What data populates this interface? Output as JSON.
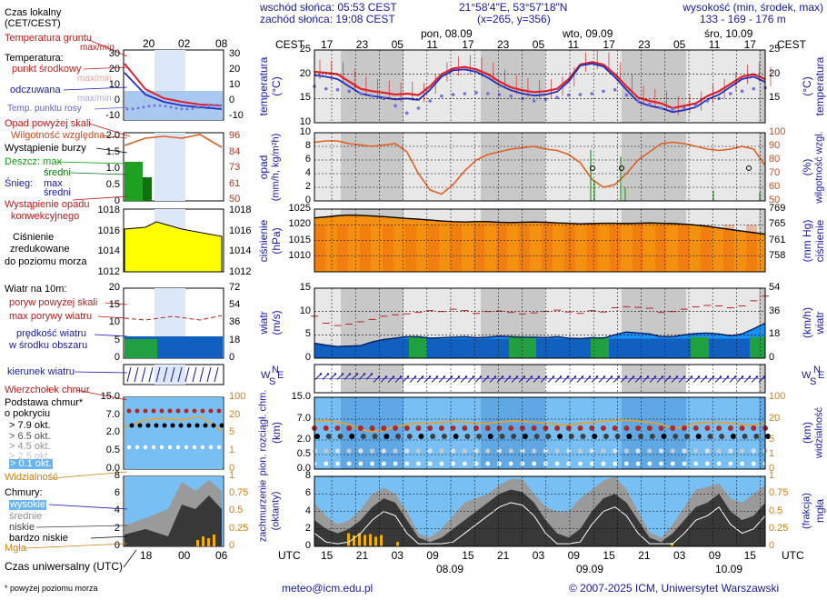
{
  "header": {
    "sunrise": "wschód słońca: 05:53 CEST",
    "sunset": "zachód słońca: 19:08 CEST",
    "coords": "21°58'4\"E, 53°57'18\"N",
    "grid": "(x=265, y=356)",
    "height_label": "wysokość (min, środek, max)",
    "height_values": "133 - 169 - 176 m",
    "day1": "pon, 08.09",
    "day2": "wto, 09.09",
    "day3": "śro, 10.09",
    "cest": "CEST",
    "utc": "UTC",
    "local_times": [
      "17",
      "23",
      "05",
      "11",
      "17",
      "23",
      "05",
      "11",
      "17",
      "23",
      "05",
      "11",
      "17"
    ],
    "utc_times": [
      "15",
      "21",
      "03",
      "09",
      "15",
      "21",
      "03",
      "09",
      "15",
      "21",
      "03",
      "09",
      "15"
    ],
    "bottom_dates": [
      "08.09",
      "09.09",
      "10.09"
    ]
  },
  "legend": {
    "local_time": "Czas lokalny",
    "local_time2": "(CET/CEST)",
    "local_ticks": [
      "20",
      "02",
      "08"
    ],
    "utc_ticks": [
      "18",
      "00",
      "06"
    ],
    "soil_temp": "Temperatura gruntu",
    "soil_temp_sub": "max/min",
    "temperature": "Temperatura:",
    "mid_point": "punkt środkowy",
    "max_min": "max/min",
    "feels": "odczuwana",
    "max_min2": "max/min",
    "dew": "Temp. punktu rosy",
    "precip_above": "Opad powyżej skali",
    "humidity": "Wilgotność względna",
    "storm": "Wystąpienie burzy",
    "rain": "Deszcz: max",
    "rain_mean": "średni",
    "snow": "Śnieg:",
    "snow_max": "max",
    "snow_mean": "średni",
    "conv": "Wystąpienie opadu",
    "conv2": "konwekcyjnego",
    "pressure1": "Ciśnienie",
    "pressure2": "zredukowane",
    "pressure3": "do poziomu morza",
    "wind10": "Wiatr na 10m:",
    "gust_above": "poryw powyżej skali",
    "gust_max": "max porywy wiatru",
    "wind_speed1": "prędkość wiatru",
    "wind_speed2": "w środku obszaru",
    "wind_dir": "kierunek wiatru",
    "cloud_top": "Wierzchołek chmur",
    "cloud_base1": "Podstawa chmur*",
    "cloud_base2": "o pokryciu",
    "okt1": "> 7.9 okt.",
    "okt2": "> 6.5 okt.",
    "okt3": "> 4.5 okt.",
    "okt4": "> 2.5 okt.",
    "okt5": "> 0.1 okt.",
    "visibility": "Widzialność",
    "clouds": "Chmury:",
    "cl_high": "wysokie",
    "cl_mid": "średnie",
    "cl_low": "niskie",
    "cl_vlow": "bardzo niskie",
    "fog": "Mgła",
    "utc_label": "Czas uniwersalny (UTC)",
    "footnote": "* powyżej poziomu morza"
  },
  "axes": {
    "temperature": "temperatura",
    "temperature_unit": "(°C)",
    "precip": "opad",
    "precip_unit": "(mm/h, kg/m²h)",
    "humidity": "wilgotność wzgl.",
    "humidity_unit": "(%)",
    "pressure": "ciśnienie",
    "pressure_unit": "(hPa)",
    "pressure_unit2": "(mm Hg)",
    "wind": "wiatr",
    "wind_unit": "(m/s)",
    "wind_unit2": "(km/h)",
    "cloud_base": "pion. rozciągł. chm.",
    "cloud_base_unit": "(km)",
    "visib": "widzialność",
    "visib_unit": "(km)",
    "cloud_cover": "zachmurzenie",
    "cloud_cover_unit": "(oktanty)",
    "fog": "mgła",
    "fog_unit": "(frakcja)",
    "compass_n": "N",
    "compass_w": "W",
    "compass_s": "S",
    "compass_e": "E"
  },
  "footer": {
    "email": "meteo@icm.edu.pl",
    "copyright": "© 2007-2025 ICM, Uniwersytet Warszawski"
  },
  "chart_data": [
    {
      "type": "line",
      "title": "temperatura",
      "ylabel": "(°C)",
      "ylim": [
        10,
        25
      ],
      "ticks_left": [
        "10",
        "15",
        "20",
        "25"
      ],
      "ticks_right": [
        "15",
        "20",
        "25"
      ],
      "series": [
        {
          "name": "temperatura",
          "color": "#e0202a",
          "values": [
            20.5,
            20.3,
            20,
            18.5,
            17,
            16.5,
            16.2,
            15.8,
            16,
            15.7,
            17.5,
            20,
            21.2,
            21.5,
            21,
            20,
            18.5,
            17.3,
            16.7,
            16.3,
            16.5,
            17,
            19,
            22,
            22.5,
            22,
            20,
            17.5,
            15.2,
            14.5,
            14,
            13,
            13.5,
            14,
            15.5,
            16.5,
            18,
            19.5,
            20,
            19
          ]
        },
        {
          "name": "odczuwana",
          "color": "#2030c0",
          "values": [
            19.8,
            19.5,
            19,
            17.5,
            16,
            15.5,
            15.2,
            14.8,
            15,
            14.7,
            16.8,
            19.5,
            20.8,
            21,
            20.5,
            19.3,
            17.8,
            16.7,
            16,
            15.6,
            15.8,
            16.4,
            18.5,
            21.8,
            22.2,
            21.6,
            19.4,
            16.8,
            14.3,
            13.5,
            13,
            12.2,
            12.6,
            13.2,
            14.8,
            15.8,
            17.4,
            19,
            19.5,
            18.4
          ]
        },
        {
          "name": "Temp. punktu rosy",
          "color": "#7070e0",
          "values": [
            17.5,
            17,
            16.8,
            16.5,
            16,
            15.5,
            15,
            13.5,
            12,
            13,
            14.5,
            15.5,
            15.8,
            16,
            16.2,
            16,
            15.8,
            15.5,
            15,
            14.5,
            14.8,
            15.2,
            15.7,
            15.8,
            16,
            16.5,
            16.8,
            15.7,
            14.5,
            13.8,
            13,
            12.8,
            13,
            13.5,
            14.5,
            15,
            16,
            16.5,
            17,
            17.2
          ]
        }
      ]
    },
    {
      "type": "line",
      "title": "opad / wilgotność wzgl.",
      "ylim_left": [
        0,
        10
      ],
      "ylim_right": [
        50,
        100
      ],
      "ticks_left": [
        "0",
        "2",
        "4",
        "6",
        "8",
        "10"
      ],
      "ticks_right": [
        "50",
        "60",
        "70",
        "80",
        "90",
        "100"
      ],
      "series": [
        {
          "name": "wilgotność względna",
          "color": "#e06020",
          "values": [
            93,
            94,
            94,
            92,
            91,
            90,
            91,
            92,
            86,
            70,
            58,
            55,
            62,
            72,
            80,
            84,
            86,
            88,
            89,
            90,
            88,
            87,
            84,
            78,
            66,
            60,
            62,
            70,
            80,
            86,
            92,
            93,
            92,
            90,
            88,
            87,
            88,
            90,
            88,
            76
          ]
        },
        {
          "name": "opad",
          "color": "#20a020",
          "values": [
            0,
            0,
            0,
            0,
            0,
            0,
            0,
            0,
            0,
            0,
            0,
            0,
            0,
            0,
            0,
            0,
            0,
            0,
            0,
            0,
            0.3,
            0.8,
            0,
            0,
            0,
            0,
            0,
            0,
            0,
            0,
            0,
            0,
            0,
            0,
            0,
            0.8,
            0.2,
            0,
            0,
            0.6
          ]
        }
      ]
    },
    {
      "type": "area",
      "title": "ciśnienie",
      "ylim": [
        1005,
        1025
      ],
      "ticks_left": [
        "1010",
        "1015",
        "1020",
        "1025"
      ],
      "ticks_right": [
        "758",
        "761",
        "765",
        "769"
      ],
      "values": [
        1022.2,
        1022.5,
        1022.9,
        1023.1,
        1023.0,
        1022.8,
        1022.6,
        1022.3,
        1022.0,
        1021.8,
        1021.5,
        1021.2,
        1021.0,
        1020.9,
        1021.0,
        1021.0,
        1020.8,
        1020.7,
        1020.8,
        1020.9,
        1020.8,
        1020.6,
        1020.5,
        1020.3,
        1020.4,
        1020.5,
        1020.5,
        1020.4,
        1020.5,
        1020.6,
        1020.5,
        1020.4,
        1020.2,
        1019.9,
        1019.5,
        1019.0,
        1018.5,
        1018.0,
        1017.5,
        1017.0
      ]
    },
    {
      "type": "area",
      "title": "wiatr",
      "ylim": [
        0,
        15
      ],
      "ticks_left": [
        "0",
        "5",
        "10",
        "15"
      ],
      "ticks_right": [
        "0",
        "18",
        "36",
        "54"
      ],
      "series": [
        {
          "name": "prędkość wiatru",
          "color": "#1080f0",
          "values": [
            3.2,
            2.8,
            2.5,
            2.6,
            2.7,
            3.5,
            4,
            4.3,
            4.6,
            4.6,
            4.3,
            4.4,
            4.5,
            4.6,
            4.4,
            4.5,
            4.7,
            4.6,
            4.5,
            4.5,
            4.4,
            4.6,
            4.3,
            4.2,
            4.4,
            4.3,
            5,
            5.6,
            5.4,
            5.2,
            4.6,
            4.6,
            5,
            5.3,
            5.4,
            5.2,
            4.8,
            5.2,
            6.3,
            7.5
          ]
        },
        {
          "name": "max porywy",
          "color": "#c02020",
          "values": [
            9,
            7.5,
            7,
            7.3,
            7.8,
            8.3,
            9,
            9.3,
            9.5,
            9.8,
            10.2,
            10,
            10.5,
            10.2,
            9.6,
            10,
            10.1,
            9.8,
            9.5,
            9.7,
            10,
            10.3,
            9.9,
            9.6,
            10.2,
            9.9,
            10.8,
            11,
            10.9,
            10.7,
            9.8,
            10,
            10.5,
            11,
            11.3,
            11.2,
            10.8,
            11.2,
            12.3,
            13.3
          ]
        }
      ]
    },
    {
      "type": "line",
      "title": "pion. rozciągł. chm. / widzialność",
      "ylim_left": [
        0,
        15
      ],
      "ylim_right": [
        0,
        100
      ],
      "ticks_left": [
        "0.0",
        "0.5",
        "2.0",
        "7.0",
        "15.0"
      ],
      "ticks_right": [
        "0",
        "1",
        "5",
        "20",
        "100"
      ],
      "series": [
        {
          "name": "widzialność",
          "color": "#f0a020",
          "values": [
            18,
            19,
            17,
            15,
            10,
            8,
            9,
            13,
            15,
            16,
            16,
            17,
            18,
            17,
            16,
            16,
            17,
            18,
            18,
            17,
            16,
            15,
            14,
            16,
            17,
            18,
            19,
            19,
            18,
            17,
            15,
            11,
            13,
            16,
            17,
            17,
            16,
            15,
            14,
            16
          ]
        }
      ]
    },
    {
      "type": "area",
      "title": "zachmurzenie",
      "ylim_left": [
        0,
        8
      ],
      "ylim_right": [
        0,
        1
      ],
      "ticks_left": [
        "0",
        "2",
        "4",
        "6",
        "8"
      ],
      "ticks_right": [
        "0",
        "0.25",
        "0.5",
        "0.75",
        "1"
      ],
      "series": [
        {
          "name": "niskie",
          "color": "#202020",
          "values": [
            3,
            2,
            1.5,
            2,
            3,
            4.5,
            5.5,
            5,
            3,
            1,
            0.5,
            1,
            2,
            3,
            4,
            5,
            6,
            6.5,
            6.2,
            5,
            3,
            1.5,
            1,
            2,
            4,
            5.5,
            6,
            5,
            3,
            1,
            0.5,
            1.5,
            3,
            4.5,
            5,
            6,
            4,
            3,
            3.5,
            5
          ]
        },
        {
          "name": "średnie",
          "color": "#808080",
          "values": [
            2,
            1.5,
            1,
            1,
            1.2,
            1.5,
            1.2,
            1,
            1,
            0.5,
            0.5,
            1,
            1.5,
            2,
            1.5,
            1,
            1,
            1.2,
            1.5,
            1,
            1.5,
            2.5,
            3,
            3.5,
            2.5,
            2,
            2.5,
            1.5,
            1,
            0.6,
            0.5,
            1,
            1.5,
            2,
            1.8,
            1.2,
            1.5,
            2,
            2.5,
            2
          ]
        }
      ]
    }
  ]
}
